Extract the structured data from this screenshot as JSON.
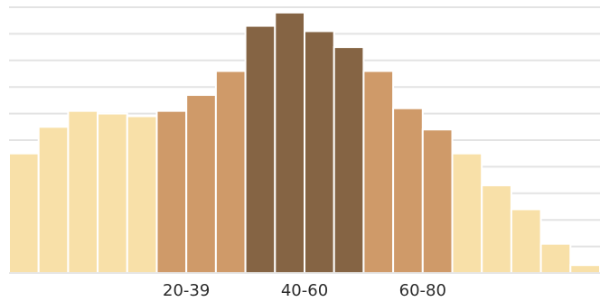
{
  "chart_data": {
    "type": "bar",
    "title": "",
    "xlabel": "",
    "ylabel": "",
    "grid": true,
    "ylim": [
      0,
      100
    ],
    "values": [
      45,
      55,
      61,
      60,
      59,
      61,
      67,
      76,
      93,
      98,
      91,
      85,
      76,
      62,
      54,
      45,
      33,
      24,
      11,
      3
    ],
    "groups": [
      {
        "start": 0,
        "end": 5,
        "color": "#f8e0a8"
      },
      {
        "start": 5,
        "end": 8,
        "color": "#cf9a69"
      },
      {
        "start": 8,
        "end": 12,
        "color": "#856444"
      },
      {
        "start": 12,
        "end": 15,
        "color": "#cf9a69"
      },
      {
        "start": 15,
        "end": 20,
        "color": "#f8e0a8"
      }
    ],
    "tick_labels": [
      {
        "text": "20-39",
        "at_bar": 6
      },
      {
        "text": "40-60",
        "at_bar": 10
      },
      {
        "text": "60-80",
        "at_bar": 14
      }
    ],
    "colors": {
      "grid": "#e3e3e3",
      "axis": "#cfcfcf",
      "bar_stroke": "#ffffff",
      "label": "#2b2b2b"
    }
  }
}
